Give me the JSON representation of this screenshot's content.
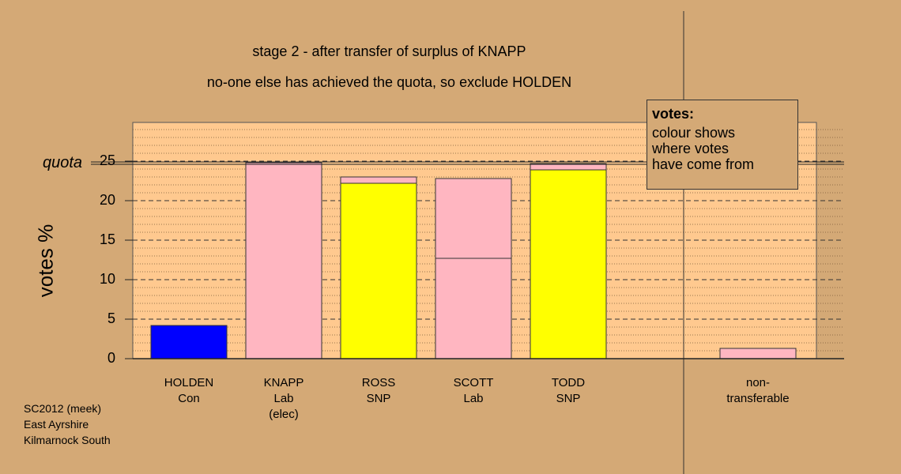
{
  "chart_data": {
    "type": "bar",
    "title": "stage 2 - after transfer of surplus of KNAPP",
    "subtitle": "no-one else has achieved the quota, so exclude HOLDEN",
    "ylabel": "votes %",
    "xlabel": "",
    "ylim": [
      0,
      30
    ],
    "yticks": [
      "0",
      "5",
      "10",
      "15",
      "20",
      "25"
    ],
    "quota": 24.8,
    "quota_label": "quota",
    "grid": true,
    "colors": {
      "Con": "#0000ff",
      "Lab": "#ffb6c1",
      "SNP": "#ffff00",
      "plot_bg": "#ffc98f",
      "page_bg": "#d4a976"
    },
    "categories": [
      {
        "lines": [
          "HOLDEN",
          "Con"
        ],
        "segments": [
          {
            "from": "Con",
            "value": 4.2
          }
        ]
      },
      {
        "lines": [
          "KNAPP",
          "Lab",
          "(elec)"
        ],
        "segments": [
          {
            "from": "Lab",
            "value": 24.8
          }
        ]
      },
      {
        "lines": [
          "ROSS",
          "SNP"
        ],
        "segments": [
          {
            "from": "SNP",
            "value": 22.2
          },
          {
            "from": "Lab",
            "value": 0.8
          }
        ]
      },
      {
        "lines": [
          "SCOTT",
          "Lab"
        ],
        "segments": [
          {
            "from": "Lab",
            "value": 12.7
          },
          {
            "from": "Lab",
            "value": 10.1
          }
        ]
      },
      {
        "lines": [
          "TODD",
          "SNP"
        ],
        "segments": [
          {
            "from": "SNP",
            "value": 23.9
          },
          {
            "from": "Lab",
            "value": 0.8
          }
        ]
      },
      {
        "lines": [
          "non-",
          "transferable"
        ],
        "segments": [
          {
            "from": "Lab",
            "value": 1.3
          }
        ]
      }
    ],
    "legend": {
      "title": "votes:",
      "lines": [
        "colour shows",
        "where votes",
        "have come from"
      ],
      "placement": "top-right"
    }
  },
  "source": {
    "lines": [
      "SC2012 (meek)",
      "East Ayrshire",
      "Kilmarnock South"
    ]
  }
}
